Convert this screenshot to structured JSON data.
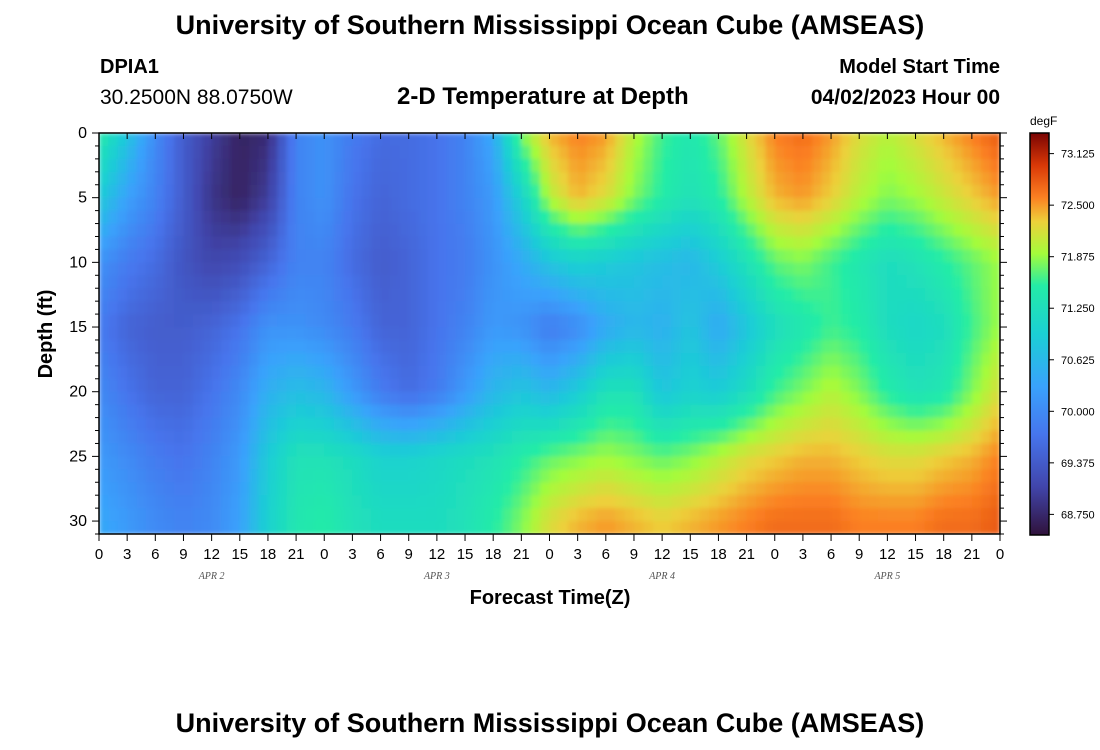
{
  "page": {
    "title": "University of Southern Mississippi Ocean Cube (AMSEAS)",
    "title_repeat": "University of Southern Mississippi Ocean Cube (AMSEAS)",
    "station_id": "DPIA1",
    "station_coords": "30.2500N  88.0750W",
    "chart_title": "2-D Temperature at Depth",
    "model_start_label": "Model Start Time",
    "model_start_value": "04/02/2023 Hour 00"
  },
  "chart_data": {
    "type": "heatmap",
    "title": "2-D Temperature at Depth",
    "xlabel": "Forecast Time(Z)",
    "ylabel": "Depth (ft)",
    "xlim": [
      0,
      96
    ],
    "ylim": [
      0,
      31
    ],
    "x_tick_hours": [
      0,
      3,
      6,
      9,
      12,
      15,
      18,
      21,
      24,
      27,
      30,
      33,
      36,
      39,
      42,
      45,
      48,
      51,
      54,
      57,
      60,
      63,
      66,
      69,
      72,
      75,
      78,
      81,
      84,
      87,
      90,
      93,
      96
    ],
    "x_tick_labels": [
      "0",
      "3",
      "6",
      "9",
      "12",
      "15",
      "18",
      "21",
      "0",
      "3",
      "6",
      "9",
      "12",
      "15",
      "18",
      "21",
      "0",
      "3",
      "6",
      "9",
      "12",
      "15",
      "18",
      "21",
      "0",
      "3",
      "6",
      "9",
      "12",
      "15",
      "18",
      "21",
      "0"
    ],
    "day_labels": [
      {
        "text": "APR 2",
        "hour": 12
      },
      {
        "text": "APR 3",
        "hour": 36
      },
      {
        "text": "APR 4",
        "hour": 60
      },
      {
        "text": "APR 5",
        "hour": 84
      }
    ],
    "y_ticks": [
      0,
      5,
      10,
      15,
      20,
      25,
      30
    ],
    "y_tick_labels": [
      "0",
      "5",
      "10",
      "15",
      "20",
      "25",
      "30"
    ],
    "colorbar": {
      "unit": "degF",
      "min": 68.5,
      "max": 73.375,
      "ticks": [
        "68.750",
        "69.375",
        "70.000",
        "70.625",
        "71.250",
        "71.875",
        "72.500",
        "73.125"
      ]
    },
    "temperature_degF": {
      "time_hours": [
        0,
        3,
        6,
        9,
        12,
        15,
        18,
        21,
        24,
        27,
        30,
        33,
        36,
        39,
        42,
        45,
        48,
        51,
        54,
        57,
        60,
        63,
        66,
        69,
        72,
        75,
        78,
        81,
        84,
        87,
        90,
        93,
        96
      ],
      "depth_ft": [
        0,
        5,
        10,
        15,
        20,
        25,
        30
      ],
      "rows": [
        [
          71.5,
          70.8,
          70.0,
          69.4,
          69.0,
          68.7,
          68.8,
          69.9,
          70.1,
          69.8,
          69.6,
          69.6,
          69.7,
          69.9,
          70.4,
          71.8,
          72.4,
          72.6,
          72.5,
          72.0,
          71.6,
          71.4,
          71.7,
          72.2,
          72.6,
          72.7,
          72.5,
          72.2,
          72.0,
          72.2,
          72.4,
          72.6,
          72.8
        ],
        [
          70.9,
          70.3,
          69.9,
          69.4,
          68.9,
          68.7,
          69.0,
          69.9,
          70.1,
          69.7,
          69.5,
          69.6,
          69.7,
          69.9,
          70.2,
          71.0,
          72.0,
          72.4,
          72.2,
          71.8,
          71.5,
          71.3,
          71.5,
          72.0,
          72.4,
          72.5,
          72.3,
          72.0,
          71.8,
          71.9,
          72.1,
          72.3,
          72.5
        ],
        [
          70.1,
          69.8,
          69.6,
          69.3,
          69.1,
          69.2,
          69.5,
          69.9,
          69.9,
          69.6,
          69.4,
          69.5,
          69.7,
          69.8,
          70.1,
          70.4,
          70.8,
          71.0,
          70.9,
          70.8,
          70.7,
          70.6,
          70.9,
          71.3,
          71.7,
          71.8,
          71.6,
          71.4,
          71.2,
          71.3,
          71.5,
          71.7,
          71.9
        ],
        [
          69.8,
          69.5,
          69.4,
          69.4,
          69.5,
          69.7,
          70.1,
          70.1,
          70.0,
          69.8,
          69.5,
          69.5,
          69.7,
          69.9,
          70.2,
          70.1,
          69.8,
          70.0,
          70.4,
          70.6,
          70.5,
          70.8,
          70.4,
          70.8,
          71.2,
          71.4,
          71.6,
          71.5,
          71.2,
          71.1,
          71.2,
          71.6,
          71.9
        ],
        [
          70.0,
          69.7,
          69.5,
          69.5,
          69.7,
          70.0,
          70.5,
          70.7,
          70.6,
          70.2,
          69.8,
          69.6,
          69.8,
          70.2,
          70.6,
          70.8,
          70.6,
          70.9,
          71.3,
          71.3,
          70.8,
          71.0,
          70.9,
          71.2,
          71.6,
          71.8,
          72.0,
          71.8,
          71.5,
          71.3,
          71.4,
          71.8,
          72.2
        ],
        [
          70.2,
          70.0,
          69.8,
          69.7,
          69.9,
          70.2,
          70.9,
          71.3,
          71.3,
          71.2,
          71.0,
          71.0,
          71.1,
          71.2,
          71.3,
          71.5,
          71.7,
          71.8,
          71.9,
          71.8,
          71.7,
          71.8,
          72.0,
          72.2,
          72.3,
          72.4,
          72.4,
          72.3,
          72.2,
          72.2,
          72.3,
          72.4,
          72.6
        ],
        [
          70.4,
          70.2,
          70.0,
          69.9,
          70.0,
          70.3,
          71.0,
          71.4,
          71.5,
          71.3,
          71.2,
          71.2,
          71.2,
          71.3,
          71.5,
          71.8,
          72.2,
          72.4,
          72.5,
          72.4,
          72.3,
          72.4,
          72.5,
          72.6,
          72.7,
          72.7,
          72.7,
          72.6,
          72.6,
          72.6,
          72.7,
          72.7,
          72.8
        ]
      ]
    }
  }
}
